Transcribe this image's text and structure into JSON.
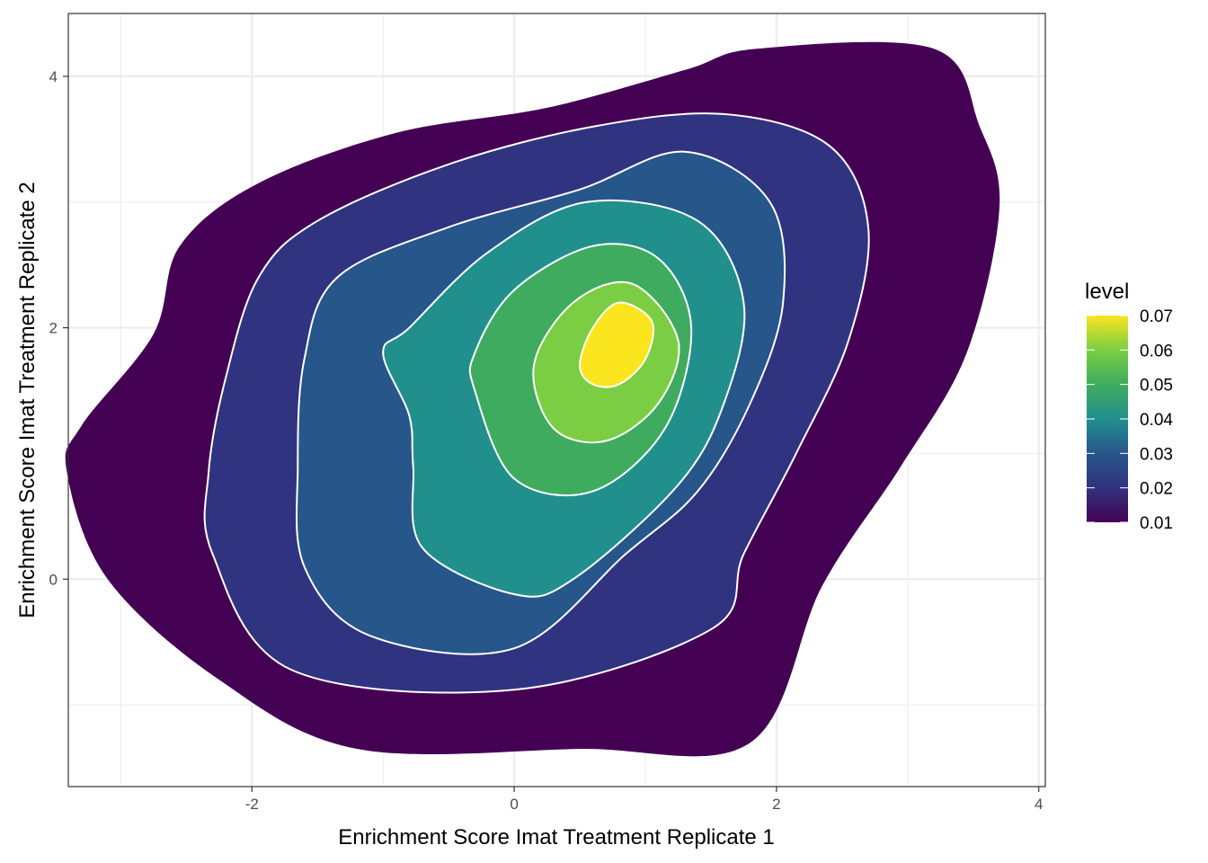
{
  "chart_data": {
    "type": "density_2d_filled",
    "xlabel": "Enrichment Score Imat Treatment Replicate 1",
    "ylabel": "Enrichment Score Imat Treatment Replicate 2",
    "xlim": [
      -3.4,
      4.05
    ],
    "ylim": [
      -1.65,
      4.5
    ],
    "x_ticks": [
      -2,
      0,
      2,
      4
    ],
    "y_ticks": [
      0,
      2,
      4
    ],
    "x_tick_labels": [
      "-2",
      "0",
      "2",
      "4"
    ],
    "y_tick_labels": [
      "0",
      "2",
      "4"
    ],
    "grid": true,
    "contour_line_color": "#ffffff",
    "contours": [
      {
        "level": 0.01,
        "fill": "#440154",
        "points": [
          [
            -3.41,
            0.85
          ],
          [
            -3.3,
            1.22
          ],
          [
            -2.75,
            1.95
          ],
          [
            -2.55,
            2.65
          ],
          [
            -1.95,
            3.15
          ],
          [
            -0.9,
            3.55
          ],
          [
            0.25,
            3.75
          ],
          [
            1.3,
            4.05
          ],
          [
            1.85,
            4.22
          ],
          [
            3.2,
            4.22
          ],
          [
            3.55,
            3.6
          ],
          [
            3.7,
            2.95
          ],
          [
            3.45,
            1.8
          ],
          [
            2.95,
            0.9
          ],
          [
            2.35,
            -0.05
          ],
          [
            1.8,
            -1.3
          ],
          [
            0.5,
            -1.35
          ],
          [
            -1.2,
            -1.35
          ],
          [
            -2.25,
            -0.8
          ],
          [
            -3.1,
            0.0
          ]
        ]
      },
      {
        "level": 0.02,
        "fill": "#30337f",
        "points": [
          [
            -2.33,
            0.85
          ],
          [
            -2.2,
            1.6
          ],
          [
            -1.95,
            2.4
          ],
          [
            -1.5,
            2.85
          ],
          [
            -0.5,
            3.3
          ],
          [
            0.6,
            3.6
          ],
          [
            1.6,
            3.7
          ],
          [
            2.4,
            3.45
          ],
          [
            2.7,
            2.8
          ],
          [
            2.55,
            1.9
          ],
          [
            2.15,
            1.0
          ],
          [
            1.75,
            0.2
          ],
          [
            1.5,
            -0.4
          ],
          [
            0.0,
            -0.88
          ],
          [
            -1.7,
            -0.72
          ],
          [
            -2.3,
            0.2
          ]
        ]
      },
      {
        "level": 0.03,
        "fill": "#26568a",
        "points": [
          [
            -1.65,
            0.9
          ],
          [
            -1.6,
            1.75
          ],
          [
            -1.35,
            2.4
          ],
          [
            -0.5,
            2.8
          ],
          [
            0.5,
            3.1
          ],
          [
            1.3,
            3.4
          ],
          [
            1.95,
            3.0
          ],
          [
            2.05,
            2.2
          ],
          [
            1.8,
            1.4
          ],
          [
            1.4,
            0.7
          ],
          [
            0.85,
            0.2
          ],
          [
            0.0,
            -0.55
          ],
          [
            -1.1,
            -0.45
          ],
          [
            -1.6,
            0.1
          ]
        ]
      },
      {
        "level": 0.04,
        "fill": "#21908d",
        "points": [
          [
            -0.8,
            1.3
          ],
          [
            -1.0,
            1.8
          ],
          [
            -0.8,
            2.0
          ],
          [
            -0.2,
            2.6
          ],
          [
            0.55,
            3.0
          ],
          [
            1.4,
            2.85
          ],
          [
            1.75,
            2.2
          ],
          [
            1.6,
            1.4
          ],
          [
            1.25,
            0.75
          ],
          [
            0.45,
            0.0
          ],
          [
            0.0,
            -0.12
          ],
          [
            -0.7,
            0.25
          ],
          [
            -0.77,
            0.9
          ]
        ]
      },
      {
        "level": 0.05,
        "fill": "#3fab5e",
        "points": [
          [
            -0.3,
            1.8
          ],
          [
            0.0,
            2.3
          ],
          [
            0.6,
            2.65
          ],
          [
            1.1,
            2.55
          ],
          [
            1.35,
            2.0
          ],
          [
            1.15,
            1.2
          ],
          [
            0.6,
            0.7
          ],
          [
            0.0,
            0.8
          ],
          [
            -0.3,
            1.5
          ]
        ]
      },
      {
        "level": 0.06,
        "fill": "#7bce43",
        "points": [
          [
            0.15,
            1.7
          ],
          [
            0.45,
            2.2
          ],
          [
            0.9,
            2.35
          ],
          [
            1.25,
            1.9
          ],
          [
            1.1,
            1.4
          ],
          [
            0.7,
            1.1
          ],
          [
            0.3,
            1.2
          ]
        ]
      },
      {
        "level": 0.07,
        "fill": "#fbe51f",
        "points": [
          [
            0.5,
            1.7
          ],
          [
            0.6,
            2.0
          ],
          [
            0.8,
            2.2
          ],
          [
            1.05,
            2.05
          ],
          [
            1.0,
            1.75
          ],
          [
            0.8,
            1.55
          ],
          [
            0.6,
            1.55
          ]
        ]
      }
    ],
    "legend": {
      "title": "level",
      "placement": "right",
      "labels": [
        "0.07",
        "0.06",
        "0.05",
        "0.04",
        "0.03",
        "0.02",
        "0.01"
      ],
      "colors": [
        "#fbe51f",
        "#7bce43",
        "#3fab5e",
        "#21908d",
        "#26568a",
        "#30337f",
        "#440154"
      ]
    }
  }
}
